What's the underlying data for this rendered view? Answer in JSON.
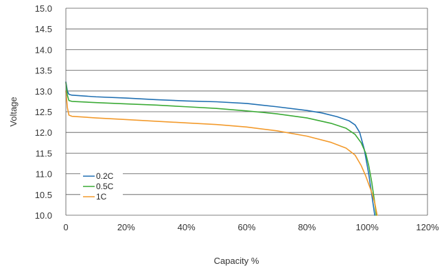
{
  "chart_data": {
    "type": "line",
    "xlabel": "Capacity %",
    "ylabel": "Voltage",
    "xlim": [
      0,
      120
    ],
    "ylim": [
      10.0,
      15.0
    ],
    "x_ticks": [
      {
        "value": 0,
        "label": "0"
      },
      {
        "value": 20,
        "label": "20%"
      },
      {
        "value": 40,
        "label": "40%"
      },
      {
        "value": 60,
        "label": "60%"
      },
      {
        "value": 80,
        "label": "80%"
      },
      {
        "value": 100,
        "label": "100%"
      },
      {
        "value": 120,
        "label": "120%"
      }
    ],
    "y_ticks": [
      {
        "value": 10.0,
        "label": "10.0"
      },
      {
        "value": 10.5,
        "label": "10.5"
      },
      {
        "value": 11.0,
        "label": "11.0"
      },
      {
        "value": 11.5,
        "label": "11.5"
      },
      {
        "value": 12.0,
        "label": "12.0"
      },
      {
        "value": 12.5,
        "label": "12.5"
      },
      {
        "value": 13.0,
        "label": "13.0"
      },
      {
        "value": 13.5,
        "label": "13.5"
      },
      {
        "value": 14.0,
        "label": "14.0"
      },
      {
        "value": 14.5,
        "label": "14.5"
      },
      {
        "value": 15.0,
        "label": "15.0"
      }
    ],
    "grid": "horizontal",
    "legend_position": "bottom-left",
    "series": [
      {
        "name": "0.2C",
        "color": "#1f6fb2",
        "points": [
          [
            0,
            13.22
          ],
          [
            0.5,
            13.0
          ],
          [
            1,
            12.92
          ],
          [
            2,
            12.9
          ],
          [
            10,
            12.86
          ],
          [
            20,
            12.83
          ],
          [
            30,
            12.79
          ],
          [
            40,
            12.76
          ],
          [
            50,
            12.74
          ],
          [
            60,
            12.7
          ],
          [
            70,
            12.62
          ],
          [
            80,
            12.53
          ],
          [
            85,
            12.47
          ],
          [
            90,
            12.38
          ],
          [
            94,
            12.28
          ],
          [
            96,
            12.18
          ],
          [
            97.5,
            12.0
          ],
          [
            99,
            11.6
          ],
          [
            100.5,
            11.0
          ],
          [
            101.5,
            10.5
          ],
          [
            102.5,
            10.0
          ]
        ]
      },
      {
        "name": "0.5C",
        "color": "#3aaa35",
        "points": [
          [
            0,
            13.2
          ],
          [
            0.5,
            12.9
          ],
          [
            1,
            12.77
          ],
          [
            2,
            12.75
          ],
          [
            10,
            12.72
          ],
          [
            20,
            12.69
          ],
          [
            30,
            12.66
          ],
          [
            40,
            12.62
          ],
          [
            50,
            12.58
          ],
          [
            60,
            12.52
          ],
          [
            70,
            12.45
          ],
          [
            80,
            12.35
          ],
          [
            88,
            12.22
          ],
          [
            93,
            12.1
          ],
          [
            96,
            11.95
          ],
          [
            98,
            11.75
          ],
          [
            99.5,
            11.5
          ],
          [
            100.5,
            11.2
          ],
          [
            101.5,
            10.8
          ],
          [
            102.5,
            10.3
          ],
          [
            103,
            10.0
          ]
        ]
      },
      {
        "name": "1C",
        "color": "#f39a2b",
        "points": [
          [
            0,
            13.0
          ],
          [
            0.5,
            12.6
          ],
          [
            1,
            12.42
          ],
          [
            2,
            12.39
          ],
          [
            10,
            12.35
          ],
          [
            20,
            12.31
          ],
          [
            30,
            12.27
          ],
          [
            40,
            12.23
          ],
          [
            50,
            12.19
          ],
          [
            60,
            12.13
          ],
          [
            70,
            12.04
          ],
          [
            80,
            11.91
          ],
          [
            88,
            11.76
          ],
          [
            93,
            11.62
          ],
          [
            96,
            11.45
          ],
          [
            98,
            11.2
          ],
          [
            99.5,
            10.95
          ],
          [
            100.5,
            10.75
          ],
          [
            101.5,
            10.55
          ],
          [
            102.5,
            10.3
          ],
          [
            103.3,
            10.0
          ]
        ]
      }
    ]
  }
}
